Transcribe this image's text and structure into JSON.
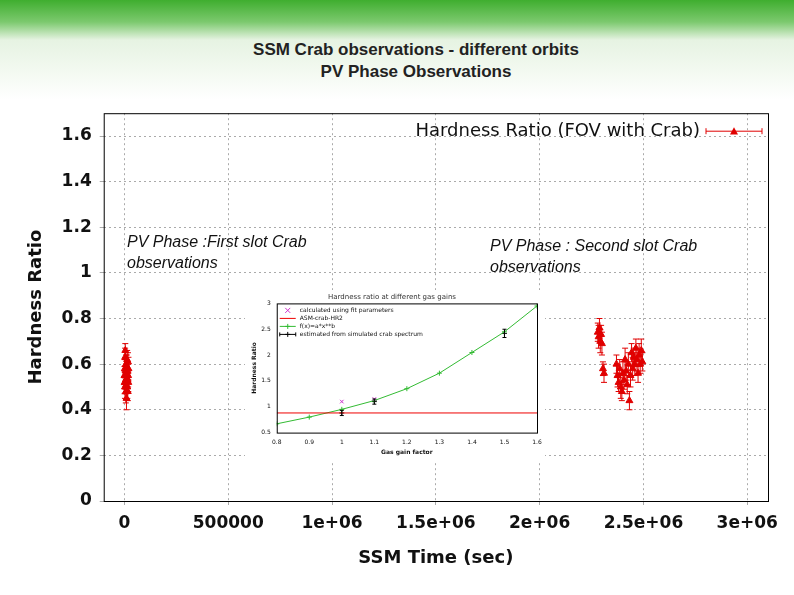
{
  "header": {
    "title": "SSM Crab observations - different orbits",
    "subtitle": "PV Phase Observations"
  },
  "chart_data": [
    {
      "type": "scatter",
      "x_label": "SSM Time (sec)",
      "y_label": "Hardness Ratio",
      "annotations": [
        [
          "PV Phase :First slot Crab",
          "observations"
        ],
        [
          "PV Phase : Second slot Crab",
          "observations"
        ]
      ],
      "xlim": [
        -100000,
        3100000
      ],
      "xticks": [
        0,
        500000,
        {
          "value": 1000000,
          "label": "1e+06"
        },
        {
          "value": 1500000,
          "label": "1.5e+06"
        },
        {
          "value": 2000000,
          "label": "2e+06"
        },
        {
          "value": 2500000,
          "label": "2.5e+06"
        },
        {
          "value": 3000000,
          "label": "3e+06"
        }
      ],
      "ylim": [
        0,
        1.7
      ],
      "yticks": [
        0,
        0.2,
        0.4,
        0.6,
        0.8,
        1,
        1.2,
        1.4,
        1.6
      ],
      "grid": true,
      "legend": "top right",
      "series": [
        {
          "name": "Hardness Ratio (FOV with Crab)",
          "color": "#e00000",
          "marker": "triangle",
          "x": [
            0,
            800,
            1600,
            2400,
            3200,
            4000,
            4800,
            5600,
            6400,
            7200,
            8000,
            8800,
            9600,
            10400,
            11200,
            12000,
            12800,
            13600,
            14400,
            15200,
            16000,
            16800,
            17600,
            18400,
            19200,
            2280000,
            2284000,
            2288000,
            2292000,
            2296000,
            2300000,
            2305000,
            2310000,
            2370000,
            2375200,
            2380400,
            2385600,
            2390800,
            2396000,
            2401200,
            2406400,
            2411600,
            2416800,
            2422000,
            2427200,
            2432400,
            2437600,
            2442800,
            2448000,
            2453200,
            2458400,
            2463600,
            2468800,
            2474000,
            2479200,
            2484400,
            2489600,
            2494800
          ],
          "values": [
            0.55,
            0.52,
            0.58,
            0.5,
            0.63,
            0.66,
            0.57,
            0.53,
            0.48,
            0.6,
            0.55,
            0.51,
            0.45,
            0.56,
            0.59,
            0.54,
            0.62,
            0.5,
            0.57,
            0.53,
            0.48,
            0.61,
            0.55,
            0.52,
            0.58,
            0.74,
            0.72,
            0.76,
            0.7,
            0.73,
            0.69,
            0.58,
            0.56,
            0.6,
            0.55,
            0.52,
            0.58,
            0.5,
            0.48,
            0.56,
            0.53,
            0.62,
            0.57,
            0.51,
            0.6,
            0.44,
            0.55,
            0.65,
            0.58,
            0.63,
            0.6,
            0.67,
            0.62,
            0.56,
            0.64,
            0.6,
            0.66,
            0.61
          ],
          "errors": [
            0.04,
            0.05,
            0.04,
            0.05,
            0.04,
            0.03,
            0.05,
            0.04,
            0.05,
            0.04,
            0.05,
            0.04,
            0.05,
            0.04,
            0.05,
            0.04,
            0.04,
            0.05,
            0.04,
            0.05,
            0.04,
            0.04,
            0.05,
            0.04,
            0.05,
            0.04,
            0.05,
            0.04,
            0.05,
            0.04,
            0.05,
            0.03,
            0.04,
            0.04,
            0.05,
            0.04,
            0.04,
            0.05,
            0.04,
            0.05,
            0.04,
            0.05,
            0.04,
            0.04,
            0.05,
            0.04,
            0.05,
            0.04,
            0.05,
            0.04,
            0.05,
            0.04,
            0.05,
            0.04,
            0.05,
            0.04,
            0.05,
            0.04
          ]
        }
      ]
    },
    {
      "type": "scatter",
      "title": "Hardness ratio at different gas gains",
      "x_label": "Gas gain factor",
      "y_label": "Hardness Ratio",
      "xlim": [
        0.8,
        1.6
      ],
      "xticks": [
        0.8,
        0.9,
        1,
        1.1,
        1.2,
        1.3,
        1.4,
        1.5,
        1.6
      ],
      "ylim": [
        0.5,
        3
      ],
      "yticks": [
        0.5,
        1,
        1.5,
        2,
        2.5,
        3
      ],
      "grid": false,
      "legend": "top left",
      "series": [
        {
          "name": "calculated using fit parameters",
          "color": "#cc33cc",
          "marker": "cross",
          "x": [
            1,
            1.1
          ],
          "values": [
            1.1,
            1.15
          ]
        },
        {
          "name": "ASM-crab-HR2",
          "color": "#ee0000",
          "type": "line",
          "marker": "none",
          "x": [
            0.8,
            1.6
          ],
          "values": [
            0.88,
            0.88
          ]
        },
        {
          "name": "f(x)=a*x**b",
          "color": "#33bb33",
          "type": "line",
          "marker": "plus",
          "x": [
            0.8,
            0.9,
            1,
            1.1,
            1.2,
            1.3,
            1.4,
            1.5,
            1.6
          ],
          "values": [
            0.67,
            0.8,
            0.95,
            1.12,
            1.35,
            1.65,
            2.05,
            2.45,
            2.95
          ]
        },
        {
          "name": "estimated from simulated crab spectrum",
          "color": "#000000",
          "marker": "plus",
          "x": [
            1,
            1.1,
            1.5
          ],
          "values": [
            0.88,
            1.1,
            2.42
          ],
          "errors": [
            0.05,
            0.05,
            0.08
          ]
        }
      ]
    }
  ]
}
